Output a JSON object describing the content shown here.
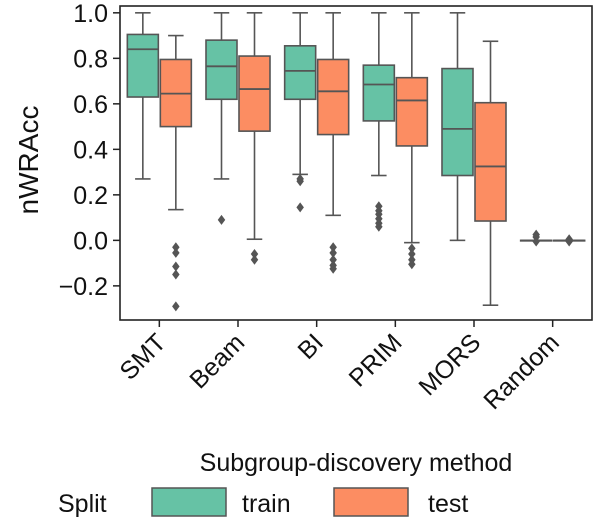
{
  "chart_data": {
    "type": "box",
    "title": "",
    "xlabel": "Subgroup-discovery method",
    "ylabel": "nWRAcc",
    "ylim": [
      -0.35,
      1.03
    ],
    "yticks": [
      1.0,
      0.8,
      0.6,
      0.4,
      0.2,
      0.0,
      -0.2
    ],
    "ytick_labels": [
      "1.0",
      "0.8",
      "0.6",
      "0.4",
      "0.2",
      "0.0",
      "−0.2"
    ],
    "categories": [
      "SMT",
      "Beam",
      "BI",
      "PRIM",
      "MORS",
      "Random"
    ],
    "grid": false,
    "legend": {
      "placement": "bottom",
      "title": "Split",
      "entries": [
        "train",
        "test"
      ]
    },
    "series": [
      {
        "name": "train",
        "color": "#66c2a5",
        "boxes": [
          {
            "q1": 0.63,
            "median": 0.84,
            "q3": 0.905,
            "whisker_low": 0.27,
            "whisker_high": 1.0,
            "outliers": []
          },
          {
            "q1": 0.62,
            "median": 0.765,
            "q3": 0.88,
            "whisker_low": 0.27,
            "whisker_high": 1.0,
            "outliers": [
              0.09
            ]
          },
          {
            "q1": 0.62,
            "median": 0.745,
            "q3": 0.855,
            "whisker_low": 0.29,
            "whisker_high": 1.0,
            "outliers": [
              0.27,
              0.26,
              0.145
            ]
          },
          {
            "q1": 0.525,
            "median": 0.685,
            "q3": 0.77,
            "whisker_low": 0.285,
            "whisker_high": 1.0,
            "outliers": [
              0.15,
              0.13,
              0.115,
              0.095,
              0.075,
              0.06
            ]
          },
          {
            "q1": 0.285,
            "median": 0.49,
            "q3": 0.755,
            "whisker_low": 0.0,
            "whisker_high": 1.0,
            "outliers": []
          },
          {
            "q1": 0.0,
            "median": 0.0,
            "q3": 0.0,
            "whisker_low": 0.0,
            "whisker_high": 0.0,
            "outliers": [
              0.025,
              0.015,
              -0.005
            ]
          }
        ]
      },
      {
        "name": "test",
        "color": "#fc8d62",
        "boxes": [
          {
            "q1": 0.5,
            "median": 0.645,
            "q3": 0.795,
            "whisker_low": 0.135,
            "whisker_high": 0.9,
            "outliers": [
              -0.03,
              -0.055,
              -0.115,
              -0.15,
              -0.29
            ]
          },
          {
            "q1": 0.48,
            "median": 0.665,
            "q3": 0.81,
            "whisker_low": 0.005,
            "whisker_high": 1.0,
            "outliers": [
              -0.06,
              -0.085
            ]
          },
          {
            "q1": 0.465,
            "median": 0.655,
            "q3": 0.795,
            "whisker_low": 0.11,
            "whisker_high": 1.0,
            "outliers": [
              -0.03,
              -0.055,
              -0.085,
              -0.11,
              -0.125
            ]
          },
          {
            "q1": 0.415,
            "median": 0.615,
            "q3": 0.715,
            "whisker_low": -0.01,
            "whisker_high": 1.0,
            "outliers": [
              -0.035,
              -0.06,
              -0.085,
              -0.105
            ]
          },
          {
            "q1": 0.085,
            "median": 0.325,
            "q3": 0.605,
            "whisker_low": -0.285,
            "whisker_high": 0.875,
            "outliers": []
          },
          {
            "q1": 0.0,
            "median": 0.0,
            "q3": 0.0,
            "whisker_low": 0.0,
            "whisker_high": 0.0,
            "outliers": [
              0.005,
              -0.005
            ]
          }
        ]
      }
    ]
  }
}
